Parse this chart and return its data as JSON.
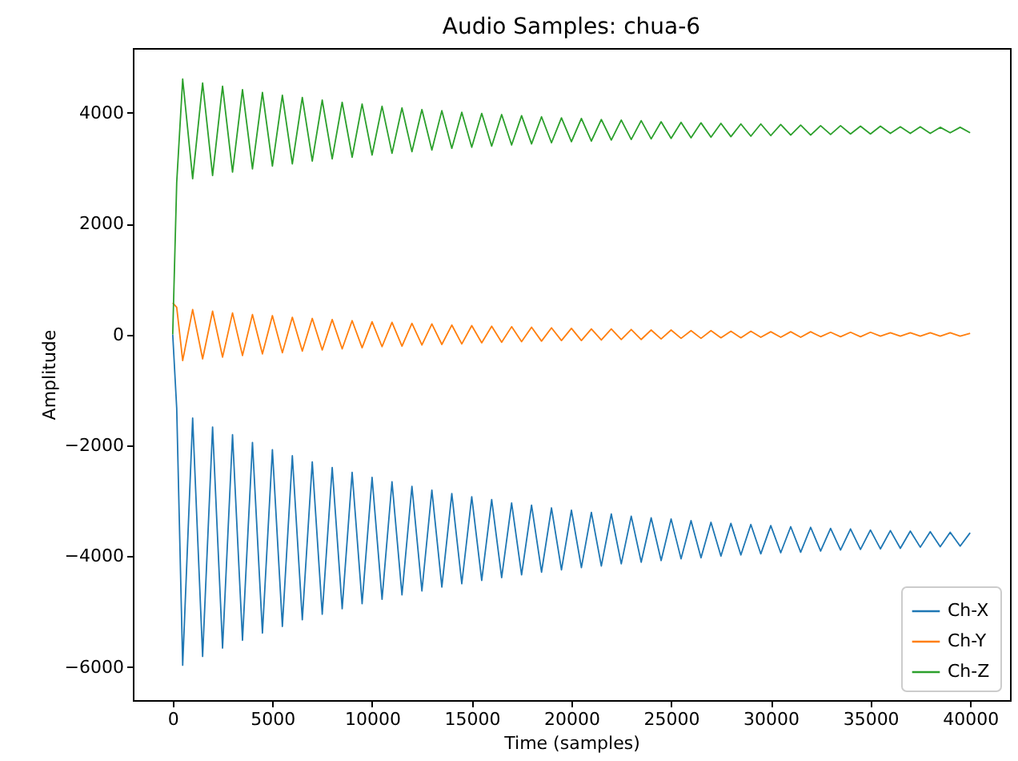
{
  "chart_data": {
    "type": "line",
    "title": "Audio Samples: chua-6",
    "xlabel": "Time (samples)",
    "ylabel": "Amplitude",
    "x": [
      0,
      200,
      500,
      1000,
      1500,
      2000,
      2500,
      3000,
      3500,
      4000,
      4500,
      5000,
      5500,
      6000,
      6500,
      7000,
      7500,
      8000,
      8500,
      9000,
      9500,
      10000,
      10500,
      11000,
      11500,
      12000,
      12500,
      13000,
      13500,
      14000,
      14500,
      15000,
      15500,
      16000,
      16500,
      17000,
      17500,
      18000,
      18500,
      19000,
      19500,
      20000,
      20500,
      21000,
      21500,
      22000,
      22500,
      23000,
      23500,
      24000,
      24500,
      25000,
      25500,
      26000,
      26500,
      27000,
      27500,
      28000,
      28500,
      29000,
      29500,
      30000,
      30500,
      31000,
      31500,
      32000,
      32500,
      33000,
      33500,
      34000,
      34500,
      35000,
      35500,
      36000,
      36500,
      37000,
      37500,
      38000,
      38500,
      39000,
      39500,
      40000
    ],
    "series": [
      {
        "name": "Ch-X",
        "color": "#1f77b4",
        "values": [
          0,
          -1330,
          -5970,
          -1510,
          -5810,
          -1670,
          -5660,
          -1810,
          -5520,
          -1950,
          -5390,
          -2080,
          -5270,
          -2190,
          -5150,
          -2300,
          -5050,
          -2400,
          -4950,
          -2490,
          -4860,
          -2580,
          -4780,
          -2660,
          -4700,
          -2740,
          -4630,
          -2810,
          -4560,
          -2870,
          -4500,
          -2930,
          -4440,
          -2980,
          -4390,
          -3040,
          -4340,
          -3080,
          -4290,
          -3130,
          -4250,
          -3170,
          -4210,
          -3210,
          -4180,
          -3240,
          -4140,
          -3280,
          -4110,
          -3310,
          -4080,
          -3330,
          -4050,
          -3360,
          -4030,
          -3390,
          -4000,
          -3410,
          -3980,
          -3430,
          -3960,
          -3450,
          -3940,
          -3470,
          -3930,
          -3480,
          -3910,
          -3500,
          -3890,
          -3510,
          -3880,
          -3530,
          -3870,
          -3540,
          -3860,
          -3550,
          -3840,
          -3560,
          -3830,
          -3570,
          -3820,
          -3580
        ]
      },
      {
        "name": "Ch-Y",
        "color": "#ff7f0e",
        "values": [
          570,
          490,
          -470,
          450,
          -440,
          420,
          -410,
          390,
          -380,
          360,
          -350,
          340,
          -330,
          310,
          -300,
          290,
          -280,
          270,
          -260,
          250,
          -240,
          230,
          -220,
          220,
          -210,
          200,
          -190,
          190,
          -180,
          170,
          -170,
          160,
          -150,
          150,
          -140,
          140,
          -130,
          130,
          -120,
          120,
          -110,
          110,
          -110,
          100,
          -100,
          100,
          -90,
          90,
          -90,
          80,
          -80,
          80,
          -70,
          70,
          -70,
          70,
          -60,
          60,
          -60,
          60,
          -50,
          50,
          -50,
          50,
          -50,
          50,
          -40,
          40,
          -40,
          40,
          -40,
          40,
          -30,
          30,
          -30,
          30,
          -30,
          30,
          -30,
          30,
          -30,
          20
        ]
      },
      {
        "name": "Ch-Z",
        "color": "#2ca02c",
        "values": [
          0,
          2740,
          4610,
          2810,
          4540,
          2870,
          4480,
          2930,
          4420,
          2990,
          4370,
          3040,
          4320,
          3080,
          4280,
          3130,
          4230,
          3170,
          4190,
          3200,
          4160,
          3240,
          4120,
          3270,
          4090,
          3300,
          4060,
          3330,
          4040,
          3360,
          4010,
          3380,
          3990,
          3400,
          3970,
          3420,
          3950,
          3440,
          3930,
          3460,
          3910,
          3480,
          3900,
          3490,
          3880,
          3510,
          3870,
          3520,
          3860,
          3530,
          3840,
          3540,
          3830,
          3550,
          3820,
          3560,
          3810,
          3570,
          3800,
          3580,
          3800,
          3590,
          3790,
          3600,
          3780,
          3600,
          3770,
          3610,
          3770,
          3620,
          3760,
          3620,
          3760,
          3630,
          3750,
          3630,
          3750,
          3630,
          3740,
          3640,
          3740,
          3640
        ]
      }
    ],
    "xlim": [
      -2000,
      42000
    ],
    "xticks": [
      0,
      5000,
      10000,
      15000,
      20000,
      25000,
      30000,
      35000,
      40000
    ],
    "ylim": [
      -6600,
      5170
    ],
    "yticks": [
      -6000,
      -4000,
      -2000,
      0,
      2000,
      4000
    ],
    "legend": "bottom right"
  }
}
